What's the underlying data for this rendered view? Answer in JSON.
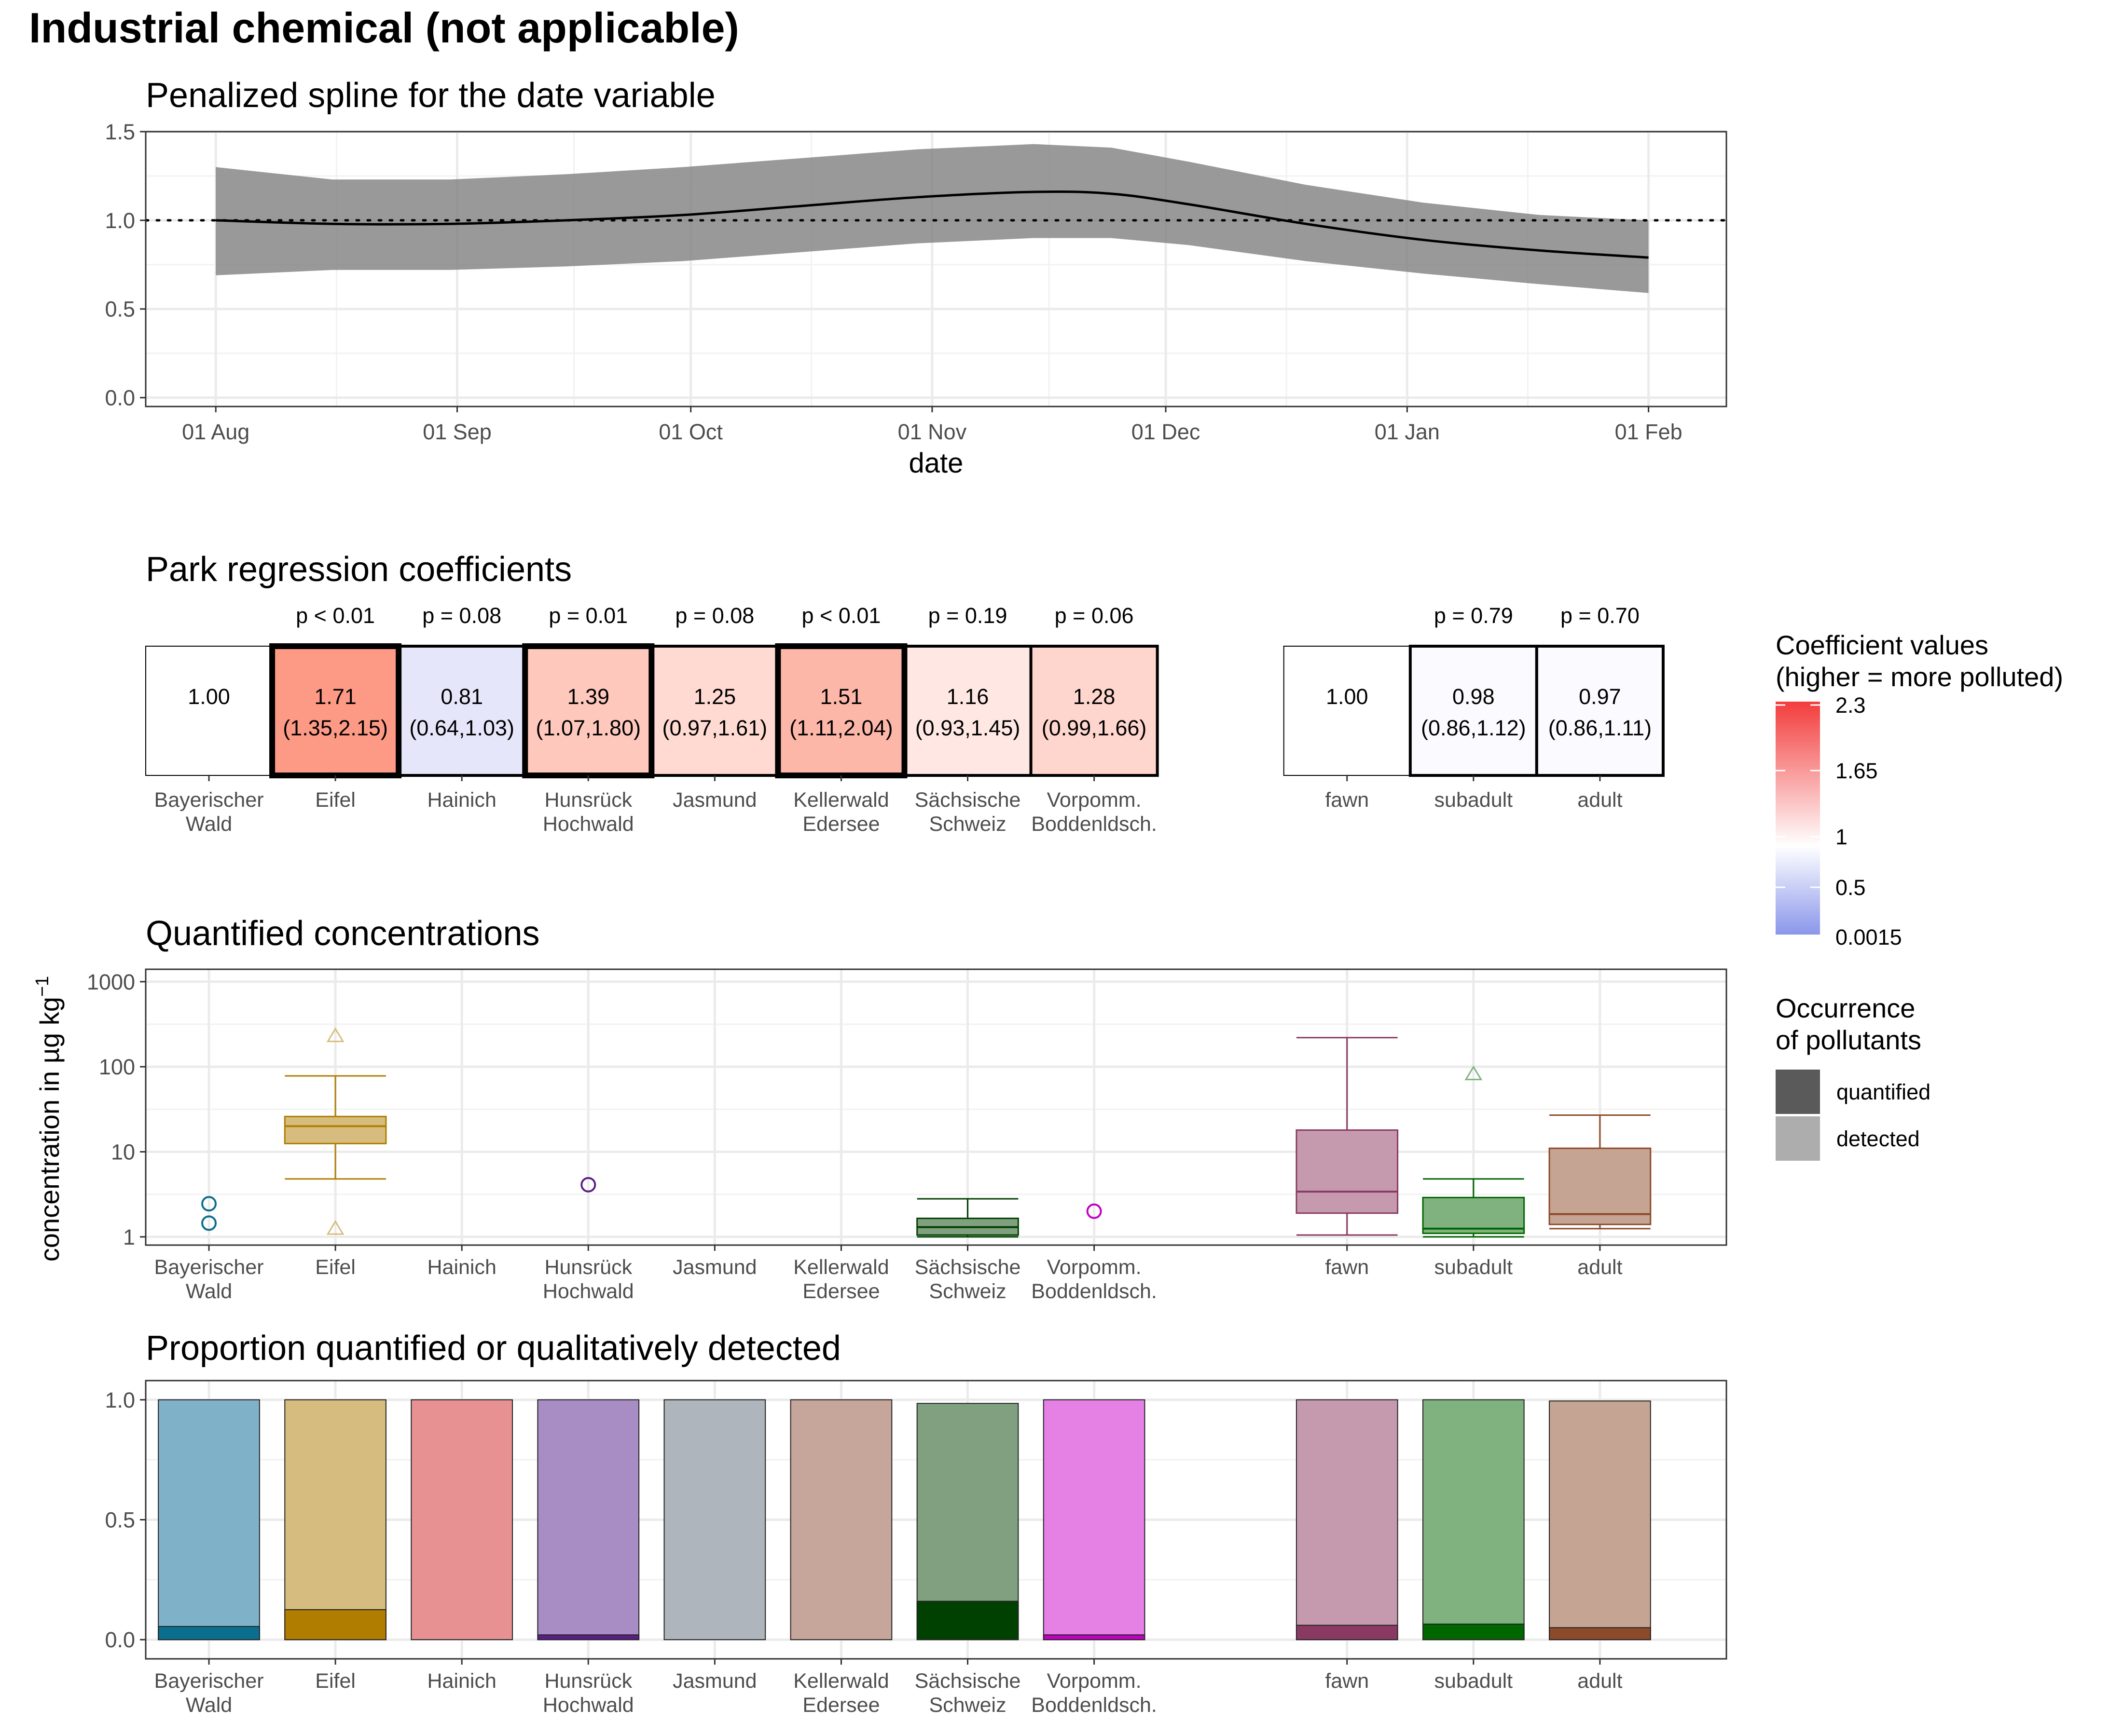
{
  "page_title": "Industrial chemical (not applicable)",
  "parks": [
    "Bayerischer\nWald",
    "Eifel",
    "Hainich",
    "Hunsrück\nHochwald",
    "Jasmund",
    "Kellerwald\nEdersee",
    "Sächsische\nSchweiz",
    "Vorpomm.\nBoddenldsch."
  ],
  "ages": [
    "fawn",
    "subadult",
    "adult"
  ],
  "colors": {
    "park": [
      "#7FB2C8",
      "#D6BC7E",
      "#E79192",
      "#A88CC4",
      "#AEB5BC",
      "#C6A69B",
      "#80A080",
      "#E580E5"
    ],
    "park_dark": [
      "#0A6E8F",
      "#B07D00",
      "#E79192",
      "#5A1F86",
      "#AEB5BC",
      "#C6A69B",
      "#004000",
      "#C200C2"
    ],
    "age": [
      "#C59AAF",
      "#80B27F",
      "#C6A493"
    ],
    "age_dark": [
      "#8A3A62",
      "#006600",
      "#8C4A2A"
    ],
    "legend_quantified": "#5A5A5A",
    "legend_detected": "#ADADAD"
  },
  "chart_data": [
    {
      "type": "line",
      "title": "Penalized spline for the date variable",
      "xlabel": "date",
      "ylabel": "",
      "x_tick_labels": [
        "01 Aug",
        "01 Sep",
        "01 Oct",
        "01 Nov",
        "01 Dec",
        "01 Jan",
        "01 Feb"
      ],
      "x_ticks_day": [
        0,
        31,
        61,
        92,
        122,
        153,
        184
      ],
      "xlim_day": [
        -9,
        194
      ],
      "ylim": [
        -0.05,
        1.5
      ],
      "y_ticks": [
        "0.0",
        "0.5",
        "1.0",
        "1.5"
      ],
      "reference_line": 1.0,
      "series": [
        {
          "x_day": [
            0,
            15,
            30,
            45,
            60,
            75,
            90,
            105,
            115,
            125,
            140,
            155,
            170,
            184
          ],
          "y": [
            1.0,
            0.98,
            0.98,
            1.0,
            1.03,
            1.08,
            1.13,
            1.16,
            1.15,
            1.09,
            0.98,
            0.89,
            0.83,
            0.79
          ],
          "lower": [
            0.69,
            0.72,
            0.72,
            0.74,
            0.77,
            0.82,
            0.87,
            0.9,
            0.9,
            0.86,
            0.77,
            0.7,
            0.64,
            0.59
          ],
          "upper": [
            1.3,
            1.23,
            1.23,
            1.26,
            1.3,
            1.35,
            1.4,
            1.43,
            1.41,
            1.33,
            1.2,
            1.1,
            1.03,
            1.0
          ]
        }
      ]
    },
    {
      "type": "heatmap",
      "title": "Park regression coefficients",
      "legend_title": "Coefficient values\n(higher = more polluted)",
      "legend_labels": [
        "2.3",
        "1.65",
        "1",
        "0.5",
        "0.0015"
      ],
      "parks": [
        {
          "value": "1.00",
          "ci": "",
          "p": "",
          "fill": "#FFFFFF",
          "bold": false
        },
        {
          "value": "1.71",
          "ci": "(1.35,2.15)",
          "p": "p < 0.01",
          "fill": "#FD9A86",
          "bold": true
        },
        {
          "value": "0.81",
          "ci": "(0.64,1.03)",
          "p": "p = 0.08",
          "fill": "#E6E6FA",
          "bold": false
        },
        {
          "value": "1.39",
          "ci": "(1.07,1.80)",
          "p": "p = 0.01",
          "fill": "#FEC8BC",
          "bold": true
        },
        {
          "value": "1.25",
          "ci": "(0.97,1.61)",
          "p": "p = 0.08",
          "fill": "#FFDAD2",
          "bold": false
        },
        {
          "value": "1.51",
          "ci": "(1.11,2.04)",
          "p": "p < 0.01",
          "fill": "#FDB7A9",
          "bold": true
        },
        {
          "value": "1.16",
          "ci": "(0.93,1.45)",
          "p": "p = 0.19",
          "fill": "#FFE8E3",
          "bold": false
        },
        {
          "value": "1.28",
          "ci": "(0.99,1.66)",
          "p": "p = 0.06",
          "fill": "#FFD6CD",
          "bold": false
        }
      ],
      "ages": [
        {
          "value": "1.00",
          "ci": "",
          "p": "",
          "fill": "#FFFFFF"
        },
        {
          "value": "0.98",
          "ci": "(0.86,1.12)",
          "p": "p = 0.79",
          "fill": "#FBFBFF"
        },
        {
          "value": "0.97",
          "ci": "(0.86,1.11)",
          "p": "p = 0.70",
          "fill": "#FAFAFF"
        }
      ]
    },
    {
      "type": "box",
      "title": "Quantified concentrations",
      "ylabel": "concentration in µg kg",
      "ylabel_superscript": "−1",
      "y_scale": "log10",
      "ylim": [
        0.8,
        1400
      ],
      "y_ticks": [
        1,
        10,
        100,
        1000
      ],
      "y_tick_labels": [
        "1",
        "10",
        "100",
        "1000"
      ],
      "parks": [
        {
          "points": [
            1.45,
            2.45
          ]
        },
        {
          "box": {
            "whisker_low": 4.8,
            "q1": 12.5,
            "median": 20,
            "q3": 26,
            "whisker_high": 78
          },
          "outliers": [
            1.25,
            230
          ]
        },
        {},
        {
          "points": [
            4.1
          ]
        },
        {},
        {},
        {
          "box": {
            "whisker_low": 1.0,
            "q1": 1.05,
            "median": 1.3,
            "q3": 1.65,
            "whisker_high": 2.8
          }
        },
        {
          "points": [
            2.0
          ]
        }
      ],
      "ages": [
        {
          "box": {
            "whisker_low": 1.05,
            "q1": 1.9,
            "median": 3.4,
            "q3": 18,
            "whisker_high": 220
          }
        },
        {
          "box": {
            "whisker_low": 1.0,
            "q1": 1.1,
            "median": 1.25,
            "q3": 2.9,
            "whisker_high": 4.8
          },
          "outliers": [
            82
          ]
        },
        {
          "box": {
            "whisker_low": 1.25,
            "q1": 1.4,
            "median": 1.85,
            "q3": 11,
            "whisker_high": 27
          }
        }
      ]
    },
    {
      "type": "bar",
      "title": "Proportion quantified or qualitatively detected",
      "ylim": [
        -0.08,
        1.08
      ],
      "y_ticks": [
        "0.0",
        "0.5",
        "1.0"
      ],
      "series": [
        {
          "name": "quantified",
          "park_values": [
            0.055,
            0.125,
            0.0,
            0.02,
            0.0,
            0.0,
            0.16,
            0.02
          ],
          "age_values": [
            0.06,
            0.065,
            0.05
          ]
        },
        {
          "name": "detected",
          "park_values": [
            1.0,
            1.0,
            1.0,
            1.0,
            1.0,
            1.0,
            0.985,
            1.0
          ],
          "age_values": [
            1.0,
            1.0,
            0.995
          ]
        }
      ]
    }
  ],
  "legend_occurrence": {
    "title": "Occurrence\nof pollutants",
    "items": [
      "quantified",
      "detected"
    ]
  }
}
